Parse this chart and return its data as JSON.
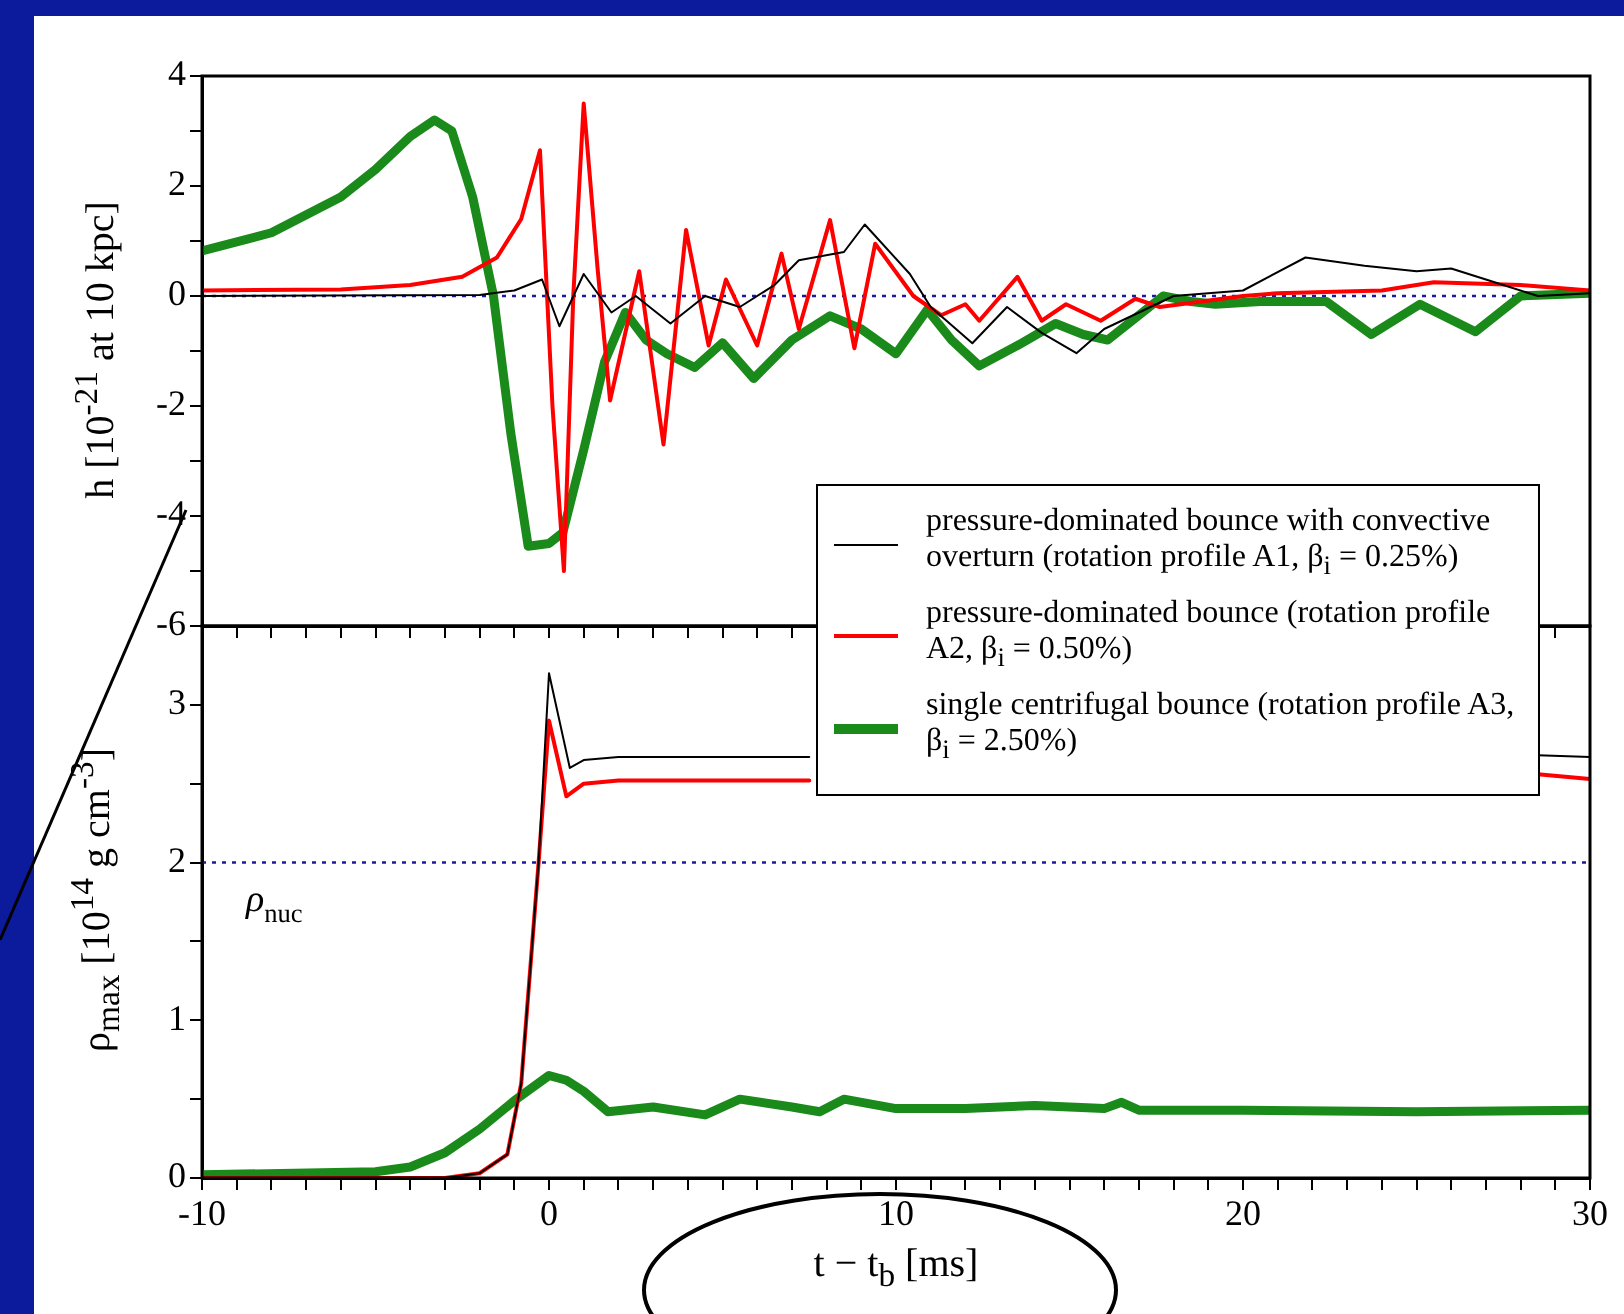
{
  "chart_data": [
    {
      "type": "line",
      "ylabel": "h [10$^{-21}$ at 10 kpc]",
      "xlim": [
        -10,
        30
      ],
      "ylim": [
        -6,
        4
      ],
      "xticks": [
        -10,
        {
          "value": -9,
          "label": null
        },
        {
          "value": -8,
          "label": null
        },
        {
          "value": -7,
          "label": null
        },
        {
          "value": -6,
          "label": null
        },
        {
          "value": -5,
          "label": null
        },
        {
          "value": -4,
          "label": null
        },
        {
          "value": -3,
          "label": null
        },
        {
          "value": -2,
          "label": null
        },
        {
          "value": -1,
          "label": null
        },
        0,
        {
          "value": 1,
          "label": null
        },
        {
          "value": 2,
          "label": null
        },
        {
          "value": 3,
          "label": null
        },
        {
          "value": 4,
          "label": null
        },
        {
          "value": 5,
          "label": null
        },
        {
          "value": 6,
          "label": null
        },
        {
          "value": 7,
          "label": null
        },
        {
          "value": 8,
          "label": null
        },
        {
          "value": 9,
          "label": null
        },
        10,
        {
          "value": 11,
          "label": null
        },
        {
          "value": 12,
          "label": null
        },
        {
          "value": 13,
          "label": null
        },
        {
          "value": 14,
          "label": null
        },
        {
          "value": 15,
          "label": null
        },
        {
          "value": 16,
          "label": null
        },
        {
          "value": 17,
          "label": null
        },
        {
          "value": 18,
          "label": null
        },
        {
          "value": 19,
          "label": null
        },
        20,
        {
          "value": 21,
          "label": null
        },
        {
          "value": 22,
          "label": null
        },
        {
          "value": 23,
          "label": null
        },
        {
          "value": 24,
          "label": null
        },
        {
          "value": 25,
          "label": null
        },
        {
          "value": 26,
          "label": null
        },
        {
          "value": 27,
          "label": null
        },
        {
          "value": 28,
          "label": null
        },
        {
          "value": 29,
          "label": null
        },
        30
      ],
      "yticks": [
        -6,
        {
          "value": -5,
          "label": null
        },
        -4,
        {
          "value": -3,
          "label": null
        },
        -2,
        {
          "value": -1,
          "label": null
        },
        0,
        {
          "value": 1,
          "label": null
        },
        2,
        {
          "value": 3,
          "label": null
        },
        4
      ],
      "tick_labels": "y",
      "ref_lines": [
        {
          "axis": "y",
          "value": 0,
          "color": "#1a1aa0",
          "line_style": "dotted"
        }
      ],
      "series": [
        {
          "color": "#000000",
          "x": [
            -10,
            -2,
            -1,
            -0.2,
            0.3,
            1.0,
            1.8,
            2.5,
            3.5,
            4.5,
            5.5,
            6.5,
            7.2,
            8.5,
            9.1,
            10.4,
            11,
            12.2,
            13.2,
            14.2,
            15.2,
            16,
            17,
            18,
            20,
            21.8,
            23.5,
            25,
            26,
            27.5,
            28.5,
            30
          ],
          "values": [
            0,
            0.02,
            0.1,
            0.3,
            -0.55,
            0.4,
            -0.3,
            0,
            -0.5,
            0,
            -0.2,
            0.2,
            0.65,
            0.8,
            1.3,
            0.4,
            -0.2,
            -0.86,
            -0.2,
            -0.67,
            -1.04,
            -0.6,
            -0.3,
            0,
            0.1,
            0.7,
            0.55,
            0.45,
            0.5,
            0.2,
            0,
            0.05
          ]
        },
        {
          "color": "#ff0000",
          "x": [
            -10,
            -6,
            -4,
            -2.5,
            -1.5,
            -0.8,
            -0.26,
            0.1,
            0.43,
            0.7,
            1.0,
            1.4,
            1.76,
            2.6,
            3.3,
            3.95,
            4.6,
            5.1,
            6,
            6.7,
            7.2,
            8.1,
            8.8,
            9.4,
            10.5,
            11.3,
            12,
            12.4,
            13.5,
            14.2,
            14.9,
            15.9,
            16.9,
            17.6,
            20,
            21,
            24,
            25.5,
            28,
            30
          ],
          "values": [
            0.1,
            0.12,
            0.2,
            0.35,
            0.7,
            1.4,
            2.65,
            -2,
            -5,
            0,
            3.5,
            0.5,
            -1.9,
            0.45,
            -2.7,
            1.2,
            -0.9,
            0.3,
            -0.9,
            0.77,
            -0.6,
            1.38,
            -0.95,
            0.95,
            0,
            -0.35,
            -0.15,
            -0.45,
            0.35,
            -0.45,
            -0.15,
            -0.45,
            -0.05,
            -0.2,
            0,
            0.05,
            0.1,
            0.25,
            0.2,
            0.1
          ]
        },
        {
          "color": "#1a8a1a",
          "x": [
            -10,
            -8,
            -6,
            -5,
            -4,
            -3.3,
            -2.8,
            -2.2,
            -1.6,
            -1.1,
            -0.6,
            0,
            0.4,
            1,
            1.6,
            2.2,
            2.8,
            3.4,
            4.2,
            5,
            5.9,
            7,
            8.1,
            9,
            10,
            10.9,
            11.6,
            12.4,
            13.5,
            14.6,
            15.4,
            16.1,
            17.7,
            18.5,
            19.2,
            20.5,
            22.4,
            23.7,
            25.1,
            26.7,
            28,
            30
          ],
          "values": [
            0.82,
            1.15,
            1.8,
            2.3,
            2.9,
            3.2,
            3.0,
            1.8,
            0,
            -2.5,
            -4.55,
            -4.5,
            -4.3,
            -2.8,
            -1.2,
            -0.3,
            -0.8,
            -1.05,
            -1.3,
            -0.85,
            -1.5,
            -0.8,
            -0.36,
            -0.6,
            -1.05,
            -0.25,
            -0.8,
            -1.27,
            -0.9,
            -0.5,
            -0.7,
            -0.8,
            0,
            -0.1,
            -0.15,
            -0.1,
            -0.1,
            -0.7,
            -0.15,
            -0.65,
            0,
            0.05
          ]
        }
      ]
    },
    {
      "type": "line",
      "xlabel": "t − t$_{b}$ [ms]",
      "ylabel": "ρ$_{max}$ [10$^{14}$ g cm$^{-3}$]",
      "xlim": [
        -10,
        30
      ],
      "ylim": [
        0,
        3.5
      ],
      "xticks": [
        -10,
        {
          "value": -9,
          "label": null
        },
        {
          "value": -8,
          "label": null
        },
        {
          "value": -7,
          "label": null
        },
        {
          "value": -6,
          "label": null
        },
        {
          "value": -5,
          "label": null
        },
        {
          "value": -4,
          "label": null
        },
        {
          "value": -3,
          "label": null
        },
        {
          "value": -2,
          "label": null
        },
        {
          "value": -1,
          "label": null
        },
        0,
        {
          "value": 1,
          "label": null
        },
        {
          "value": 2,
          "label": null
        },
        {
          "value": 3,
          "label": null
        },
        {
          "value": 4,
          "label": null
        },
        {
          "value": 5,
          "label": null
        },
        {
          "value": 6,
          "label": null
        },
        {
          "value": 7,
          "label": null
        },
        {
          "value": 8,
          "label": null
        },
        {
          "value": 9,
          "label": null
        },
        10,
        {
          "value": 11,
          "label": null
        },
        {
          "value": 12,
          "label": null
        },
        {
          "value": 13,
          "label": null
        },
        {
          "value": 14,
          "label": null
        },
        {
          "value": 15,
          "label": null
        },
        {
          "value": 16,
          "label": null
        },
        {
          "value": 17,
          "label": null
        },
        {
          "value": 18,
          "label": null
        },
        {
          "value": 19,
          "label": null
        },
        20,
        {
          "value": 21,
          "label": null
        },
        {
          "value": 22,
          "label": null
        },
        {
          "value": 23,
          "label": null
        },
        {
          "value": 24,
          "label": null
        },
        {
          "value": 25,
          "label": null
        },
        {
          "value": 26,
          "label": null
        },
        {
          "value": 27,
          "label": null
        },
        {
          "value": 28,
          "label": null
        },
        {
          "value": 29,
          "label": null
        },
        30
      ],
      "yticks": [
        0,
        {
          "value": 0.5,
          "label": null
        },
        1,
        {
          "value": 1.5,
          "label": null
        },
        2,
        {
          "value": 2.5,
          "label": null
        },
        3
      ],
      "ref_lines": [
        {
          "axis": "y",
          "value": 2,
          "label": "ρ$_{nuc}$",
          "color": "#1a1aa0",
          "line_style": "dotted"
        }
      ],
      "legend": "top right",
      "series": [
        {
          "name": "pressure-dominated bounce with convective overturn (rotation profile A1, β$_{i}$ = 0.25%)",
          "color": "#000000",
          "x": [
            -10,
            -3,
            -2,
            -1.2,
            -0.8,
            -0.3,
            0,
            0.6,
            1,
            2,
            7.5,
            18,
            28.5,
            30
          ],
          "values": [
            0,
            0,
            0.03,
            0.15,
            0.6,
            2.0,
            3.2,
            2.6,
            2.65,
            2.67,
            2.67,
            null,
            2.68,
            2.67
          ]
        },
        {
          "name": "pressure-dominated bounce (rotation profile A2, β$_{i}$ = 0.50%)",
          "color": "#ff0000",
          "x": [
            -10,
            -3,
            -2,
            -1.2,
            -0.8,
            -0.3,
            0,
            0.5,
            1,
            2,
            7.5,
            18,
            28.5,
            30
          ],
          "values": [
            0,
            0,
            0.03,
            0.15,
            0.6,
            2.0,
            2.9,
            2.42,
            2.5,
            2.52,
            2.52,
            null,
            2.56,
            2.53
          ]
        },
        {
          "name": "single centrifugal bounce (rotation profile A3, β$_{i}$ = 2.50%)",
          "color": "#1a8a1a",
          "x": [
            -10,
            -5,
            -4,
            -3,
            -2,
            -1,
            0,
            0.5,
            1,
            1.7,
            3,
            4.5,
            5.5,
            7,
            7.8,
            8.5,
            10,
            12,
            14,
            16,
            16.5,
            17,
            20,
            25,
            30
          ],
          "values": [
            0.02,
            0.04,
            0.07,
            0.16,
            0.31,
            0.49,
            0.65,
            0.62,
            0.55,
            0.42,
            0.45,
            0.4,
            0.5,
            0.45,
            0.42,
            0.5,
            0.44,
            0.44,
            0.46,
            0.44,
            0.48,
            0.43,
            0.43,
            0.42,
            0.43
          ]
        }
      ]
    }
  ]
}
